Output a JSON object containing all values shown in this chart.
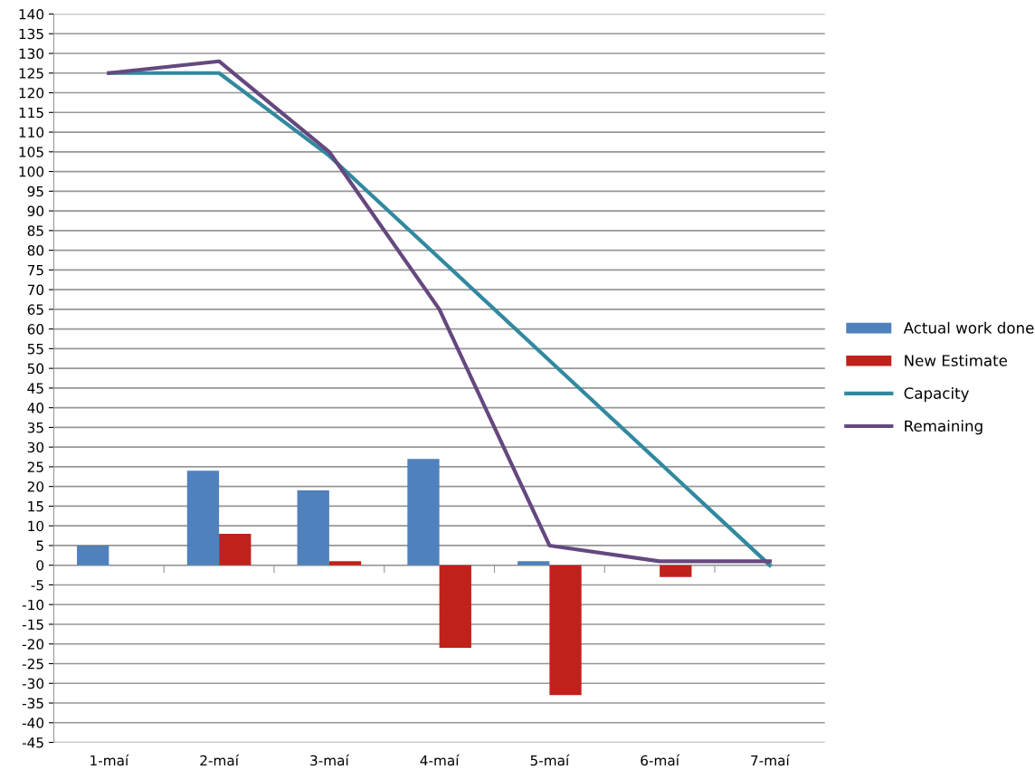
{
  "chart_data": {
    "type": "bar",
    "categories": [
      "1-maí",
      "2-maí",
      "3-maí",
      "4-maí",
      "5-maí",
      "6-maí",
      "7-maí"
    ],
    "series": [
      {
        "name": "Actual work done",
        "color": "#4f81bd",
        "values": [
          5,
          24,
          19,
          27,
          1,
          null,
          null
        ]
      },
      {
        "name": "New Estimate",
        "color": "#c0211a",
        "values": [
          null,
          8,
          1,
          -21,
          -33,
          -3,
          null
        ]
      },
      {
        "name": "Capacity",
        "type": "line",
        "color": "#31899f",
        "values": [
          125,
          125,
          104,
          78,
          52,
          26,
          0
        ]
      },
      {
        "name": "Remaining",
        "type": "line",
        "color": "#65487f",
        "values": [
          125,
          128,
          105,
          65,
          5,
          1,
          1
        ]
      }
    ],
    "ylim": [
      -45,
      140
    ],
    "yticks": [
      -45,
      -40,
      -35,
      -30,
      -25,
      -20,
      -15,
      -10,
      -5,
      0,
      5,
      10,
      15,
      20,
      25,
      30,
      35,
      40,
      45,
      50,
      55,
      60,
      65,
      70,
      75,
      80,
      85,
      90,
      95,
      100,
      105,
      110,
      115,
      120,
      125,
      130,
      135,
      140
    ],
    "grid": "y",
    "legend": "right",
    "marker": "none",
    "line_style": "solid"
  }
}
